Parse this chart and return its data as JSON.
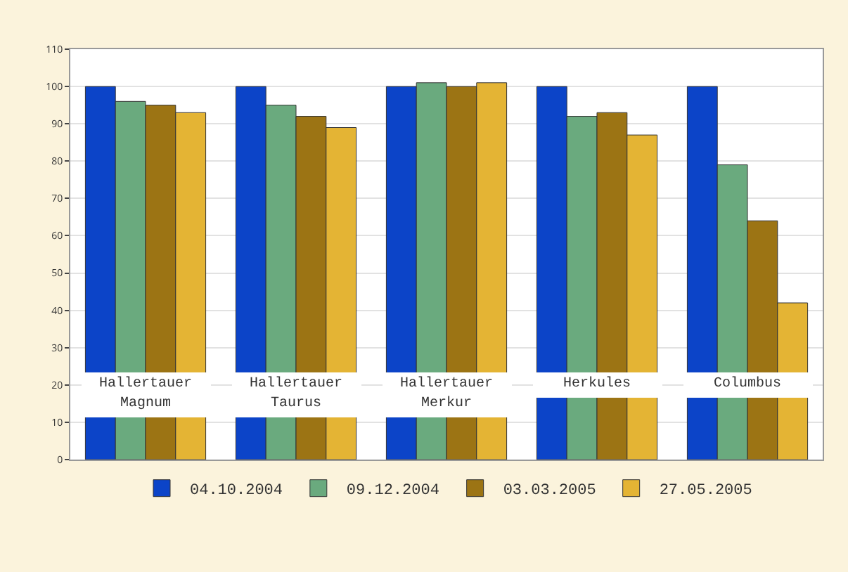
{
  "chart_data": {
    "type": "bar",
    "categories": [
      "Hallertauer Magnum",
      "Hallertauer Taurus",
      "Hallertauer Merkur",
      "Herkules",
      "Columbus"
    ],
    "series": [
      {
        "name": "04.10.2004",
        "color": "#0c44c8",
        "values": [
          100,
          100,
          100,
          100,
          100
        ]
      },
      {
        "name": "09.12.2004",
        "color": "#6aaa7e",
        "values": [
          96,
          95,
          101,
          92,
          79
        ]
      },
      {
        "name": "03.03.2005",
        "color": "#9c7414",
        "values": [
          95,
          92,
          100,
          93,
          64
        ]
      },
      {
        "name": "27.05.2005",
        "color": "#e4b434",
        "values": [
          93,
          89,
          101,
          87,
          42
        ]
      }
    ],
    "ylim": [
      0,
      110
    ],
    "yticks": [
      0,
      10,
      20,
      30,
      40,
      50,
      60,
      70,
      80,
      90,
      100,
      110
    ],
    "grid": "y",
    "legend": "bottom"
  }
}
